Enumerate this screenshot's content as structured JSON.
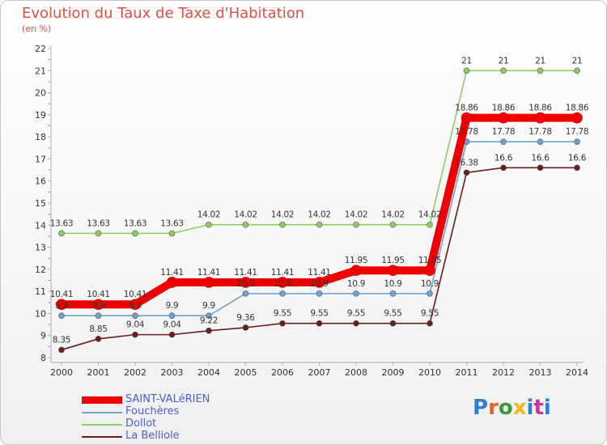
{
  "header": {
    "title": "Evolution du Taux de Taxe d'Habitation",
    "unit": "(en %)"
  },
  "logo": {
    "text": "Proxiti"
  },
  "chart_data": {
    "type": "line",
    "title": "Evolution du Taux de Taxe d'Habitation",
    "subtitle": "(en %)",
    "xlabel": "",
    "ylabel": "",
    "categories": [
      "2000",
      "2001",
      "2002",
      "2003",
      "2004",
      "2005",
      "2006",
      "2007",
      "2008",
      "2009",
      "2010",
      "2011",
      "2012",
      "2013",
      "2014"
    ],
    "ylim": [
      8,
      22
    ],
    "yticks": [
      8,
      9,
      10,
      11,
      12,
      13,
      14,
      15,
      16,
      17,
      18,
      19,
      20,
      21,
      22
    ],
    "grid": false,
    "legend_position": "bottom-left",
    "series": [
      {
        "name": "Dollot",
        "color": "#88d060",
        "values": [
          13.63,
          13.63,
          13.63,
          13.63,
          14.02,
          14.02,
          14.02,
          14.02,
          14.02,
          14.02,
          14.02,
          21,
          21,
          21,
          21
        ],
        "labels": [
          "13.63",
          "13.63",
          "13.63",
          "13.63",
          "14.02",
          "14.02",
          "14.02",
          "14.02",
          "14.02",
          "14.02",
          "14.02",
          "21",
          "21",
          "21",
          "21"
        ]
      },
      {
        "name": "Fouchères",
        "color": "#6fa3cf",
        "values": [
          9.9,
          9.9,
          9.9,
          9.9,
          9.9,
          10.9,
          10.9,
          10.9,
          10.9,
          10.9,
          10.9,
          17.78,
          17.78,
          17.78,
          17.78
        ],
        "labels": [
          "9.9",
          "9.9",
          "9.9",
          "9.9",
          "9.9",
          "10.9",
          "10.9",
          "10.9",
          "10.9",
          "10.9",
          "10.9",
          "17.78",
          "17.78",
          "17.78",
          "17.78"
        ]
      },
      {
        "name": "La Belliole",
        "color": "#6b1c1c",
        "values": [
          8.35,
          8.85,
          9.04,
          9.04,
          9.22,
          9.36,
          9.55,
          9.55,
          9.55,
          9.55,
          9.55,
          16.38,
          16.6,
          16.6,
          16.6
        ],
        "labels": [
          "8.35",
          "8.85",
          "9.04",
          "9.04",
          "9.22",
          "9.36",
          "9.55",
          "9.55",
          "9.55",
          "9.55",
          "9.55",
          "16.38",
          "16.6",
          "16.6",
          "16.6"
        ]
      },
      {
        "name": "SAINT-VALéRIEN",
        "color": "#ee0000",
        "values": [
          10.41,
          10.41,
          10.41,
          11.41,
          11.41,
          11.41,
          11.41,
          11.41,
          11.95,
          11.95,
          11.95,
          18.86,
          18.86,
          18.86,
          18.86
        ],
        "labels": [
          "10.41",
          "10.41",
          "10.41",
          "11.41",
          "11.41",
          "11.41",
          "11.41",
          "11.41",
          "11.95",
          "11.95",
          "11.95",
          "18.86",
          "18.86",
          "18.86",
          "18.86"
        ]
      }
    ],
    "legend": [
      "SAINT-VALéRIEN",
      "Fouchères",
      "Dollot",
      "La Belliole"
    ]
  }
}
